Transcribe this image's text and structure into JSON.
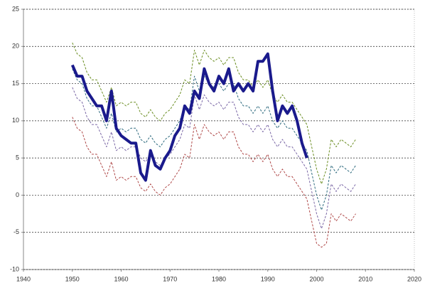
{
  "chart_data": {
    "type": "line",
    "x": [
      1950,
      1951,
      1952,
      1953,
      1954,
      1955,
      1956,
      1957,
      1958,
      1959,
      1960,
      1961,
      1962,
      1963,
      1964,
      1965,
      1966,
      1967,
      1968,
      1969,
      1970,
      1971,
      1972,
      1973,
      1974,
      1975,
      1976,
      1977,
      1978,
      1979,
      1980,
      1981,
      1982,
      1983,
      1984,
      1985,
      1986,
      1987,
      1988,
      1989,
      1990,
      1991,
      1992,
      1993,
      1994,
      1995,
      1996,
      1997,
      1998,
      1999,
      2000,
      2001,
      2002,
      2003,
      2004,
      2005,
      2006,
      2007,
      2008
    ],
    "series": [
      {
        "color": "#6b8e23",
        "dashed": true,
        "width": 1,
        "values": [
          20.5,
          19,
          18.5,
          16.5,
          15.5,
          15.5,
          14,
          12.5,
          14.5,
          12,
          12.5,
          12,
          12.5,
          12.5,
          11,
          10.5,
          11.5,
          10.5,
          10,
          11,
          11.5,
          12.5,
          13.5,
          15.5,
          15,
          19.5,
          17.5,
          19.5,
          18.5,
          18,
          18.5,
          17.5,
          18.5,
          18.5,
          16.5,
          15.5,
          15.5,
          14.5,
          15.5,
          14.5,
          15.5,
          13.5,
          12.5,
          13.5,
          12.5,
          12.5,
          11.5,
          10.5,
          9.5,
          6.5,
          3.5,
          1.5,
          3.5,
          7.5,
          6.5,
          7.5,
          7,
          6.5,
          7.5
        ]
      },
      {
        "color": "#2f6b7f",
        "dashed": true,
        "width": 1,
        "values": [
          17,
          15.5,
          15,
          13,
          12,
          12,
          10.5,
          9,
          11,
          8.5,
          9,
          8.5,
          9,
          9,
          7.5,
          7,
          8,
          7,
          6.5,
          7.5,
          8,
          9,
          10,
          12,
          11.5,
          16,
          14,
          16,
          15,
          14.5,
          15,
          14,
          15,
          15,
          13,
          12,
          12,
          11,
          12,
          11,
          12,
          10,
          9,
          10,
          9,
          9,
          8,
          7,
          6,
          3,
          0,
          -2,
          0,
          4,
          3,
          4,
          3.5,
          3,
          4
        ]
      },
      {
        "color": "#7b68a6",
        "dashed": true,
        "width": 1,
        "values": [
          14.5,
          13,
          12.5,
          10.5,
          9.5,
          9.5,
          8,
          6.5,
          8.5,
          6,
          6.5,
          6,
          6.5,
          6.5,
          5,
          4.5,
          5.5,
          4.5,
          4,
          5,
          5.5,
          6.5,
          7.5,
          9.5,
          9,
          13.5,
          11.5,
          13.5,
          12.5,
          12,
          12.5,
          11.5,
          12.5,
          12.5,
          10.5,
          9.5,
          9.5,
          8.5,
          9.5,
          8.5,
          9.5,
          7.5,
          6.5,
          7.5,
          6.5,
          6.5,
          5.5,
          4.5,
          3.5,
          0.5,
          -2.5,
          -4.5,
          -2.5,
          1.5,
          0.5,
          1.5,
          1,
          0.5,
          1.5
        ]
      },
      {
        "color": "#b04a4a",
        "dashed": true,
        "width": 1,
        "values": [
          10.5,
          9,
          8.5,
          6.5,
          5.5,
          5.5,
          4,
          2.5,
          4.5,
          2,
          2.5,
          2,
          2.5,
          2.5,
          1,
          0.5,
          1.5,
          0.5,
          0,
          1,
          1.5,
          2.5,
          3.5,
          5.5,
          5,
          9.5,
          7.5,
          9.5,
          8.5,
          8,
          8.5,
          7.5,
          8.5,
          8.5,
          6.5,
          5.5,
          5.5,
          4.5,
          5.5,
          4.5,
          5.5,
          3.5,
          2.5,
          3.5,
          2.5,
          2.5,
          1.5,
          0.5,
          -0.5,
          -3.5,
          -6.5,
          -7,
          -6.5,
          -2.5,
          -3.5,
          -2.5,
          -3,
          -3.5,
          -2.5
        ]
      },
      {
        "color": "#1a1a8c",
        "dashed": false,
        "width": 4,
        "values": [
          17.5,
          16,
          16,
          14,
          13,
          12,
          12,
          10,
          14,
          9,
          8,
          7.5,
          7,
          7,
          3,
          2,
          6,
          4,
          3.5,
          5,
          6,
          8,
          9,
          12,
          11,
          14,
          13,
          17,
          15,
          14,
          16,
          15,
          17,
          14,
          15,
          14,
          15,
          14,
          18,
          18,
          19,
          14,
          10,
          12,
          11,
          12,
          10,
          7,
          5,
          null,
          null,
          null,
          null,
          null,
          null,
          null,
          null,
          null,
          null
        ]
      }
    ],
    "xlim": [
      1940,
      2020
    ],
    "xticks": [
      1940,
      1950,
      1960,
      1970,
      1980,
      1990,
      2000,
      2010,
      2020
    ],
    "ylim": [
      -10,
      25
    ],
    "yticks": [
      -10,
      -5,
      0,
      5,
      10,
      15,
      20,
      25
    ],
    "grid": true
  }
}
